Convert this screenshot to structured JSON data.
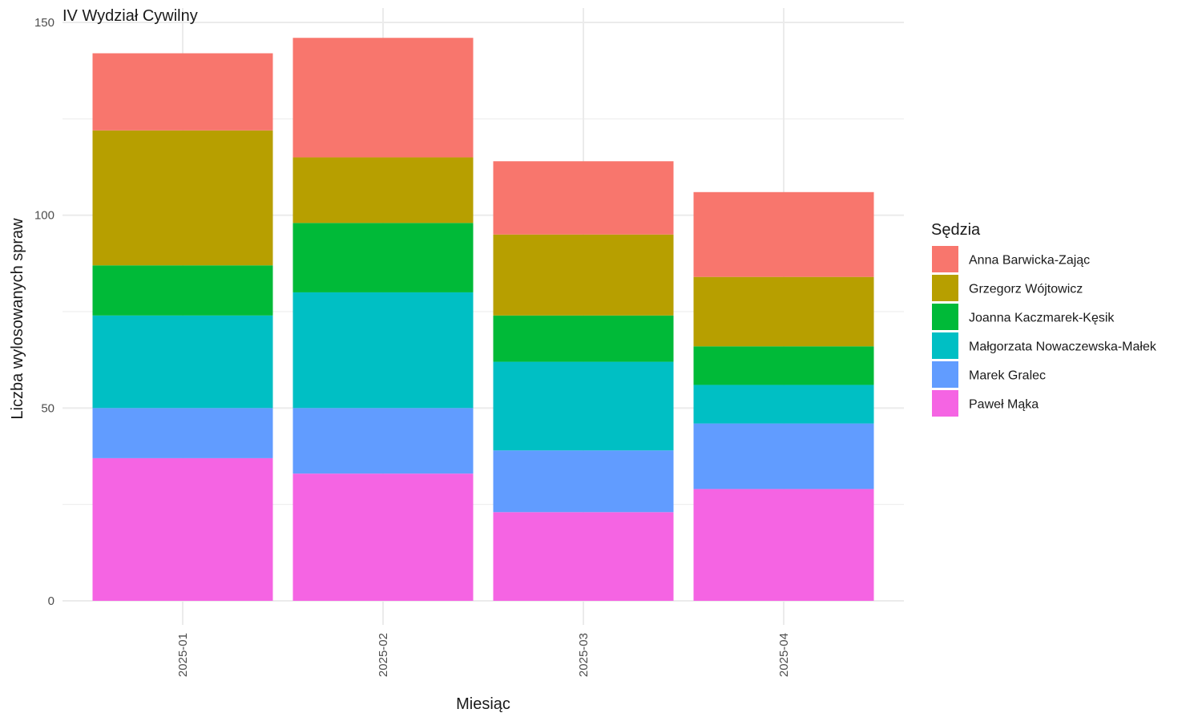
{
  "chart_data": {
    "type": "bar",
    "stacked": true,
    "title": "IV Wydział Cywilny",
    "xlabel": "Miesiąc",
    "ylabel": "Liczba wylosowanych spraw",
    "ylim": [
      0,
      150
    ],
    "y_ticks": [
      0,
      50,
      100,
      150
    ],
    "x_tick_rotation": "vertical",
    "grid": true,
    "legend_position": "right",
    "legend_title": "Sędzia",
    "categories": [
      "2025-01",
      "2025-02",
      "2025-03",
      "2025-04"
    ],
    "series": [
      {
        "name": "Anna Barwicka-Zając",
        "color": "#F8766D",
        "values": [
          20,
          31,
          19,
          22
        ]
      },
      {
        "name": "Grzegorz Wójtowicz",
        "color": "#B79F00",
        "values": [
          35,
          17,
          21,
          18
        ]
      },
      {
        "name": "Joanna Kaczmarek-Kęsik",
        "color": "#00BA38",
        "values": [
          13,
          18,
          12,
          10
        ]
      },
      {
        "name": "Małgorzata Nowaczewska-Małek",
        "color": "#00BFC4",
        "values": [
          24,
          30,
          23,
          10
        ]
      },
      {
        "name": "Marek Gralec",
        "color": "#619CFF",
        "values": [
          13,
          17,
          16,
          17
        ]
      },
      {
        "name": "Paweł Mąka",
        "color": "#F564E3",
        "values": [
          37,
          33,
          23,
          29
        ]
      }
    ],
    "stack_order": "last series at bottom"
  }
}
